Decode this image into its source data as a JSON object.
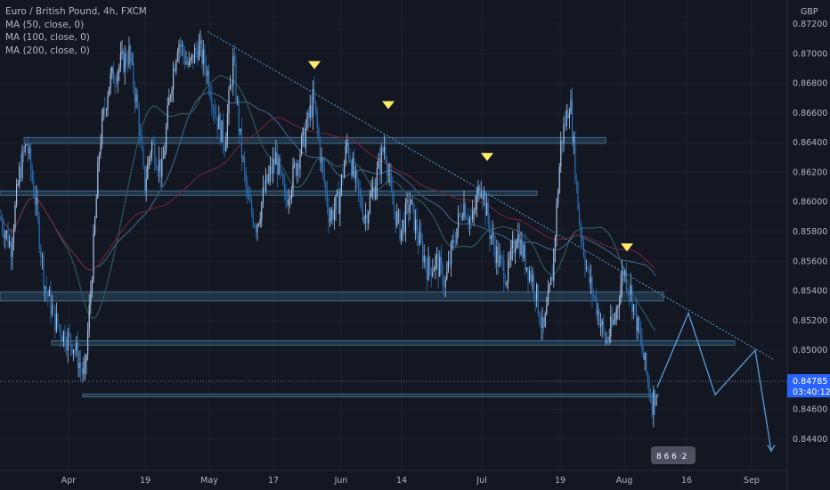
{
  "legend": {
    "symbol": "Euro / British Pound, 4h, FXCM",
    "ma50": "MA (50, close, 0)",
    "ma100": "MA (100, close, 0)",
    "ma200": "MA (200, close, 0)"
  },
  "currency": "GBP",
  "price_tag": {
    "price": "0.84785",
    "countdown": "03:40:12"
  },
  "colors": {
    "background": "#131722",
    "candle": "#a9c4e6",
    "candle_dark": "#2a6fb5",
    "zone": "#2b4a62",
    "trend": "#5b9bd5",
    "ma_red": "#6b2436",
    "ma_teal": "#2f5a57",
    "ma_blue": "#3a5e7e",
    "marker": "#ffeb6b",
    "tag": "#2962ff"
  },
  "chart_data": {
    "type": "line",
    "xlabel": "",
    "ylabel": "",
    "ylim": [
      0.8425,
      0.8725
    ],
    "y_ticks": [
      "0.87200",
      "0.87000",
      "0.86800",
      "0.86600",
      "0.86400",
      "0.86200",
      "0.86000",
      "0.85800",
      "0.85600",
      "0.85400",
      "0.85200",
      "0.85000",
      "0.84600",
      "0.84400"
    ],
    "x_ticks": [
      "Apr",
      "19",
      "May",
      "17",
      "Jun",
      "14",
      "Jul",
      "19",
      "Aug",
      "16",
      "Sep"
    ],
    "series": [
      {
        "type": "candlestick-trace",
        "points": [
          [
            0,
            0.859
          ],
          [
            12,
            0.857
          ],
          [
            22,
            0.862
          ],
          [
            30,
            0.864
          ],
          [
            40,
            0.86
          ],
          [
            50,
            0.8545
          ],
          [
            62,
            0.852
          ],
          [
            72,
            0.851
          ],
          [
            82,
            0.8505
          ],
          [
            95,
            0.848
          ],
          [
            104,
            0.856
          ],
          [
            112,
            0.864
          ],
          [
            122,
            0.868
          ],
          [
            132,
            0.869
          ],
          [
            145,
            0.87
          ],
          [
            155,
            0.866
          ],
          [
            162,
            0.861
          ],
          [
            170,
            0.864
          ],
          [
            182,
            0.862
          ],
          [
            192,
            0.868
          ],
          [
            200,
            0.871
          ],
          [
            212,
            0.869
          ],
          [
            222,
            0.8705
          ],
          [
            232,
            0.869
          ],
          [
            242,
            0.866
          ],
          [
            252,
            0.864
          ],
          [
            262,
            0.8695
          ],
          [
            270,
            0.864
          ],
          [
            278,
            0.86
          ],
          [
            288,
            0.8585
          ],
          [
            298,
            0.861
          ],
          [
            310,
            0.863
          ],
          [
            320,
            0.86
          ],
          [
            330,
            0.862
          ],
          [
            342,
            0.8645
          ],
          [
            352,
            0.867
          ],
          [
            360,
            0.863
          ],
          [
            370,
            0.859
          ],
          [
            380,
            0.86
          ],
          [
            390,
            0.864
          ],
          [
            400,
            0.861
          ],
          [
            410,
            0.859
          ],
          [
            420,
            0.861
          ],
          [
            432,
            0.864
          ],
          [
            440,
            0.86
          ],
          [
            450,
            0.858
          ],
          [
            460,
            0.86
          ],
          [
            470,
            0.8575
          ],
          [
            480,
            0.8555
          ],
          [
            490,
            0.856
          ],
          [
            500,
            0.8545
          ],
          [
            510,
            0.8575
          ],
          [
            520,
            0.86
          ],
          [
            530,
            0.8585
          ],
          [
            540,
            0.8615
          ],
          [
            550,
            0.858
          ],
          [
            560,
            0.856
          ],
          [
            570,
            0.855
          ],
          [
            580,
            0.858
          ],
          [
            590,
            0.856
          ],
          [
            600,
            0.8545
          ],
          [
            610,
            0.851
          ],
          [
            620,
            0.855
          ],
          [
            630,
            0.864
          ],
          [
            640,
            0.867
          ],
          [
            650,
            0.859
          ],
          [
            660,
            0.855
          ],
          [
            670,
            0.853
          ],
          [
            680,
            0.8505
          ],
          [
            690,
            0.852
          ],
          [
            700,
            0.8555
          ],
          [
            708,
            0.854
          ],
          [
            716,
            0.8515
          ],
          [
            724,
            0.849
          ],
          [
            732,
            0.8465
          ],
          [
            738,
            0.8475
          ]
        ]
      },
      {
        "type": "projection",
        "points": [
          [
            738,
            0.8475
          ],
          [
            773,
            0.8525
          ],
          [
            803,
            0.847
          ],
          [
            848,
            0.85
          ],
          [
            866,
            0.8432
          ]
        ]
      }
    ],
    "trendline": [
      [
        233,
        0.8715
      ],
      [
        868,
        0.8494
      ]
    ],
    "zones": [
      {
        "x": [
          27,
          680
        ],
        "y": [
          0.86435,
          0.86395
        ]
      },
      {
        "x": [
          0,
          603
        ],
        "y": [
          0.86075,
          0.86045
        ]
      },
      {
        "x": [
          0,
          745
        ],
        "y": [
          0.85392,
          0.85332
        ]
      },
      {
        "x": [
          58,
          825
        ],
        "y": [
          0.85065,
          0.85035
        ]
      },
      {
        "x": [
          93,
          739
        ],
        "y": [
          0.84705,
          0.84685
        ]
      }
    ],
    "markers": [
      [
        353,
        0.8692
      ],
      [
        436,
        0.8665
      ],
      [
        547,
        0.863
      ],
      [
        704,
        0.8569
      ]
    ]
  },
  "watermark": "8 6 6 ·2"
}
